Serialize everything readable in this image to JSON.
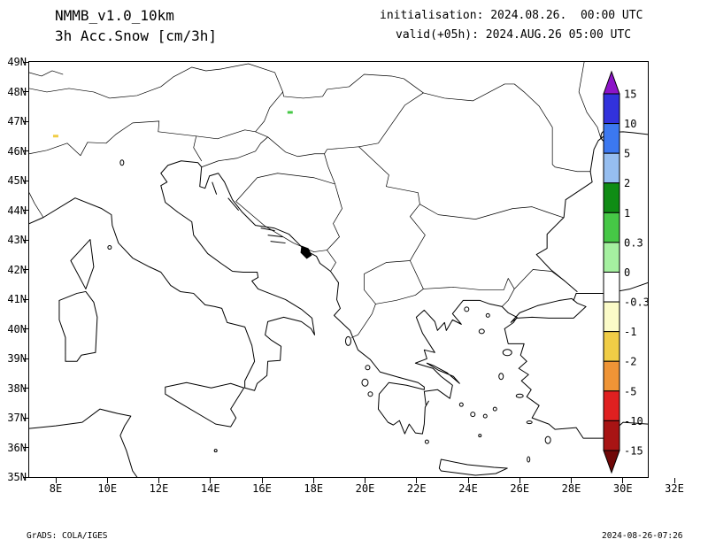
{
  "header": {
    "model": "NMMB_v1.0_10km",
    "field": "3h Acc.Snow [cm/3h]",
    "init": "initialisation: 2024.08.26.  00:00 UTC",
    "valid": "valid(+05h): 2024.AUG.26 05:00 UTC"
  },
  "footer": {
    "left": "GrADS: COLA/IGES",
    "right": "2024-08-26-07:26"
  },
  "axes": {
    "lat_labels": [
      "49N",
      "48N",
      "47N",
      "46N",
      "45N",
      "44N",
      "43N",
      "42N",
      "41N",
      "40N",
      "39N",
      "38N",
      "37N",
      "36N",
      "35N"
    ],
    "lon_labels": [
      "8E",
      "10E",
      "12E",
      "14E",
      "16E",
      "18E",
      "20E",
      "22E",
      "24E",
      "26E",
      "28E",
      "30E",
      "32E"
    ]
  },
  "chart_data": {
    "type": "map",
    "title": "3h Acc.Snow [cm/3h]",
    "model": "NMMB_v1.0_10km",
    "initialisation": "2024.08.26. 00:00 UTC",
    "valid": "2024.AUG.26 05:00 UTC (+05h)",
    "lon_range_deg_east": [
      6.9,
      32
    ],
    "lat_range_deg_north": [
      35,
      49
    ],
    "lon_ticks": [
      8,
      10,
      12,
      14,
      16,
      18,
      20,
      22,
      24,
      26,
      28,
      30,
      32
    ],
    "lat_ticks": [
      49,
      48,
      47,
      46,
      45,
      44,
      43,
      42,
      41,
      40,
      39,
      38,
      37,
      36,
      35
    ],
    "colorbar": {
      "boundary_labels": [
        "15",
        "10",
        "5",
        "2",
        "1",
        "0.3",
        "0",
        "-0.3",
        "-1",
        "-2",
        "-5",
        "-10",
        "-15"
      ],
      "colors_top_to_bottom": [
        "#8c14c8",
        "#3232dc",
        "#3c78f0",
        "#96bef0",
        "#0f8c14",
        "#46c846",
        "#a5f0a0",
        "#ffffff",
        "#fbfbc8",
        "#f0cd46",
        "#ef9436",
        "#e02020",
        "#a81414",
        "#700808"
      ]
    },
    "data_marks": [
      {
        "lon": 8.0,
        "lat": 46.5,
        "color": "#f0cd46"
      },
      {
        "lon": 17.5,
        "lat": 47.3,
        "color": "#46c846"
      }
    ]
  }
}
